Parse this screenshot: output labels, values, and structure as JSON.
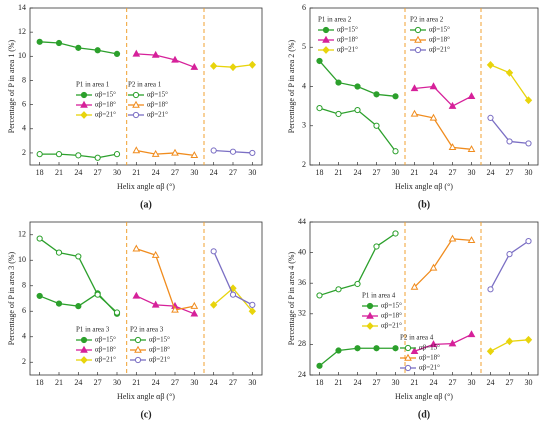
{
  "chart_data": [
    {
      "type": "line",
      "panel_label": "(a)",
      "ylabel": "Percentage of P in area 1 (%)",
      "xlabel": "Helix angle αβ (°)",
      "categories": [
        18,
        21,
        24,
        27,
        30,
        21,
        24,
        27,
        30,
        24,
        27,
        30
      ],
      "ylim": [
        1,
        14
      ],
      "yticks": [
        2,
        4,
        6,
        8,
        10,
        12,
        14
      ],
      "groups": [
        {
          "title": "P1 in area 1",
          "series": [
            {
              "name": "αβ=15°",
              "color": "#2ca02c",
              "marker": "circle",
              "filled": true,
              "values": [
                11.2,
                11.1,
                10.7,
                10.5,
                10.2,
                null,
                null,
                null,
                null,
                null,
                null,
                null
              ]
            },
            {
              "name": "αβ=18°",
              "color": "#d6219a",
              "marker": "triangle",
              "filled": true,
              "values": [
                null,
                null,
                null,
                null,
                null,
                10.2,
                10.1,
                9.7,
                9.1,
                null,
                null,
                null
              ]
            },
            {
              "name": "αβ=21°",
              "color": "#e8d40c",
              "marker": "diamond",
              "filled": true,
              "values": [
                null,
                null,
                null,
                null,
                null,
                null,
                null,
                null,
                null,
                9.2,
                9.1,
                9.3
              ]
            }
          ]
        },
        {
          "title": "P2 in area 1",
          "series": [
            {
              "name": "αβ=15°",
              "color": "#2ca02c",
              "marker": "circle",
              "filled": false,
              "values": [
                1.9,
                1.9,
                1.8,
                1.6,
                1.9,
                null,
                null,
                null,
                null,
                null,
                null,
                null
              ]
            },
            {
              "name": "αβ=18°",
              "color": "#f08c1e",
              "marker": "triangle",
              "filled": false,
              "values": [
                null,
                null,
                null,
                null,
                null,
                2.2,
                1.9,
                2.0,
                1.8,
                null,
                null,
                null
              ]
            },
            {
              "name": "αβ=21°",
              "color": "#7b6fc4",
              "marker": "circle",
              "filled": false,
              "values": [
                null,
                null,
                null,
                null,
                null,
                null,
                null,
                null,
                null,
                2.2,
                2.1,
                2.0
              ]
            }
          ]
        }
      ]
    },
    {
      "type": "line",
      "panel_label": "(b)",
      "ylabel": "Percentage of P in area 2 (%)",
      "xlabel": "Helix angle αβ (°)",
      "categories": [
        18,
        21,
        24,
        27,
        30,
        21,
        24,
        27,
        30,
        24,
        27,
        30
      ],
      "ylim": [
        2,
        6
      ],
      "yticks": [
        2,
        3,
        4,
        5,
        6
      ],
      "groups": [
        {
          "title": "P1 in area 2",
          "series": [
            {
              "name": "αβ=15°",
              "color": "#2ca02c",
              "marker": "circle",
              "filled": true,
              "values": [
                4.65,
                4.1,
                4.0,
                3.8,
                3.75,
                null,
                null,
                null,
                null,
                null,
                null,
                null
              ]
            },
            {
              "name": "αβ=18°",
              "color": "#d6219a",
              "marker": "triangle",
              "filled": true,
              "values": [
                null,
                null,
                null,
                null,
                null,
                3.95,
                4.0,
                3.5,
                3.75,
                null,
                null,
                null
              ]
            },
            {
              "name": "αβ=21°",
              "color": "#e8d40c",
              "marker": "diamond",
              "filled": true,
              "values": [
                null,
                null,
                null,
                null,
                null,
                null,
                null,
                null,
                null,
                4.55,
                4.35,
                3.65
              ]
            }
          ]
        },
        {
          "title": "P2 in area 2",
          "series": [
            {
              "name": "αβ=15°",
              "color": "#2ca02c",
              "marker": "circle",
              "filled": false,
              "values": [
                3.45,
                3.3,
                3.4,
                3.0,
                2.35,
                null,
                null,
                null,
                null,
                null,
                null,
                null
              ]
            },
            {
              "name": "αβ=18°",
              "color": "#f08c1e",
              "marker": "triangle",
              "filled": false,
              "values": [
                null,
                null,
                null,
                null,
                null,
                3.3,
                3.2,
                2.45,
                2.4,
                null,
                null,
                null
              ]
            },
            {
              "name": "αβ=21°",
              "color": "#7b6fc4",
              "marker": "circle",
              "filled": false,
              "values": [
                null,
                null,
                null,
                null,
                null,
                null,
                null,
                null,
                null,
                3.2,
                2.6,
                2.55
              ]
            }
          ]
        }
      ]
    },
    {
      "type": "line",
      "panel_label": "(c)",
      "ylabel": "Percentage of P in area 3 (%)",
      "xlabel": "Helix angle αβ (°)",
      "categories": [
        18,
        21,
        24,
        27,
        30,
        21,
        24,
        27,
        30,
        24,
        27,
        30
      ],
      "ylim": [
        1,
        13
      ],
      "yticks": [
        2,
        4,
        6,
        8,
        10,
        12
      ],
      "groups": [
        {
          "title": "P1 in area 3",
          "series": [
            {
              "name": "αβ=15°",
              "color": "#2ca02c",
              "marker": "circle",
              "filled": true,
              "values": [
                7.2,
                6.6,
                6.4,
                7.4,
                5.8,
                null,
                null,
                null,
                null,
                null,
                null,
                null
              ]
            },
            {
              "name": "αβ=18°",
              "color": "#d6219a",
              "marker": "triangle",
              "filled": true,
              "values": [
                null,
                null,
                null,
                null,
                null,
                7.2,
                6.5,
                6.4,
                5.8,
                null,
                null,
                null
              ]
            },
            {
              "name": "αβ=21°",
              "color": "#e8d40c",
              "marker": "diamond",
              "filled": true,
              "values": [
                null,
                null,
                null,
                null,
                null,
                null,
                null,
                null,
                null,
                6.5,
                7.8,
                6.0
              ]
            }
          ]
        },
        {
          "title": "P2 in area 3",
          "series": [
            {
              "name": "αβ=15°",
              "color": "#2ca02c",
              "marker": "circle",
              "filled": false,
              "values": [
                11.7,
                10.6,
                10.3,
                7.3,
                5.9,
                null,
                null,
                null,
                null,
                null,
                null,
                null
              ]
            },
            {
              "name": "αβ=18°",
              "color": "#f08c1e",
              "marker": "triangle",
              "filled": false,
              "values": [
                null,
                null,
                null,
                null,
                null,
                10.9,
                10.4,
                6.1,
                6.4,
                null,
                null,
                null
              ]
            },
            {
              "name": "αβ=21°",
              "color": "#7b6fc4",
              "marker": "circle",
              "filled": false,
              "values": [
                null,
                null,
                null,
                null,
                null,
                null,
                null,
                null,
                null,
                10.7,
                7.3,
                6.5
              ]
            }
          ]
        }
      ]
    },
    {
      "type": "line",
      "panel_label": "(d)",
      "ylabel": "Percentage of P in area 4 (%)",
      "xlabel": "Helix angle αβ (°)",
      "categories": [
        18,
        21,
        24,
        27,
        30,
        21,
        24,
        27,
        30,
        24,
        27,
        30
      ],
      "ylim": [
        24,
        44
      ],
      "yticks": [
        24,
        28,
        32,
        36,
        40,
        44
      ],
      "groups": [
        {
          "title": "P1 in area 4",
          "series": [
            {
              "name": "αβ=15°",
              "color": "#2ca02c",
              "marker": "circle",
              "filled": true,
              "values": [
                25.2,
                27.2,
                27.5,
                27.5,
                27.5,
                null,
                null,
                null,
                null,
                null,
                null,
                null
              ]
            },
            {
              "name": "αβ=18°",
              "color": "#d6219a",
              "marker": "triangle",
              "filled": true,
              "values": [
                null,
                null,
                null,
                null,
                null,
                27.1,
                28.0,
                28.1,
                29.3,
                null,
                null,
                null
              ]
            },
            {
              "name": "αβ=21°",
              "color": "#e8d40c",
              "marker": "diamond",
              "filled": true,
              "values": [
                null,
                null,
                null,
                null,
                null,
                null,
                null,
                null,
                null,
                27.1,
                28.4,
                28.6
              ]
            }
          ]
        },
        {
          "title": "P2 in area 4",
          "series": [
            {
              "name": "αβ=15°",
              "color": "#2ca02c",
              "marker": "circle",
              "filled": false,
              "values": [
                34.4,
                35.2,
                35.9,
                40.8,
                42.5,
                null,
                null,
                null,
                null,
                null,
                null,
                null
              ]
            },
            {
              "name": "αβ=18°",
              "color": "#f08c1e",
              "marker": "triangle",
              "filled": false,
              "values": [
                null,
                null,
                null,
                null,
                null,
                35.5,
                38.0,
                41.8,
                41.6,
                null,
                null,
                null
              ]
            },
            {
              "name": "αβ=21°",
              "color": "#7b6fc4",
              "marker": "circle",
              "filled": false,
              "values": [
                null,
                null,
                null,
                null,
                null,
                null,
                null,
                null,
                null,
                35.2,
                39.8,
                41.5
              ]
            }
          ]
        }
      ]
    }
  ]
}
